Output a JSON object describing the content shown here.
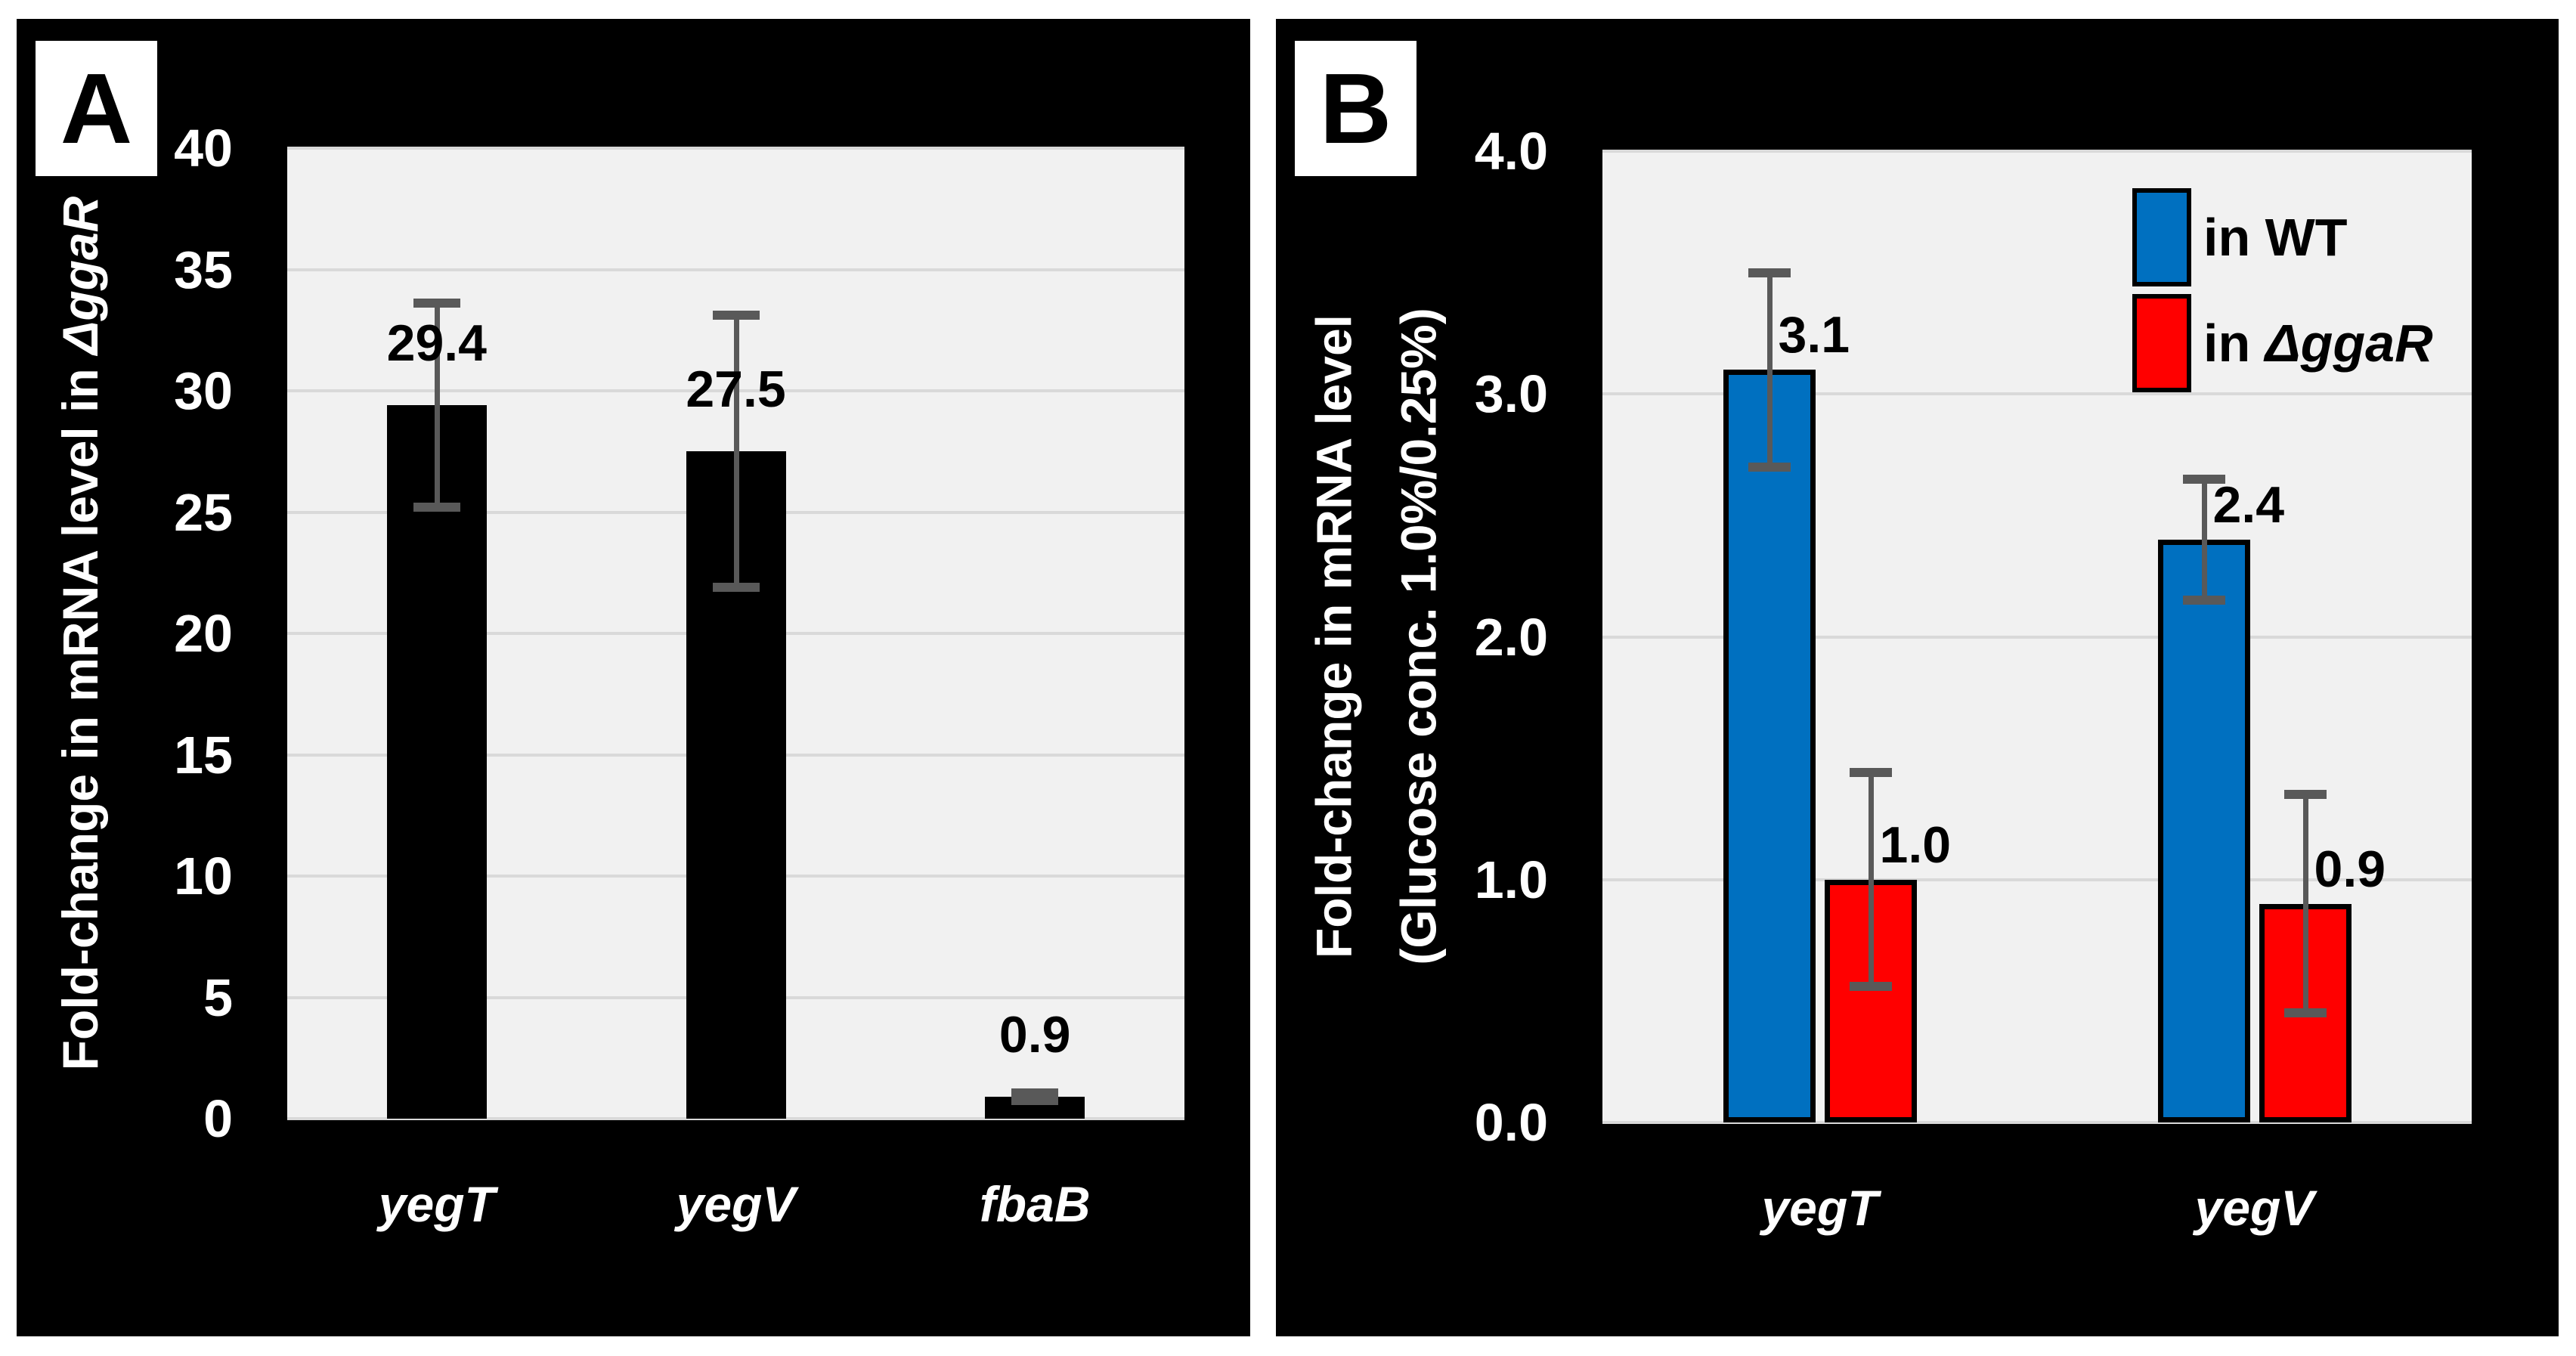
{
  "page": {
    "background": "#FFFFFF"
  },
  "colors": {
    "panel_bg": "#000000",
    "plot_bg": "#F1F1F1",
    "gridline": "#D9D9D9",
    "error_bar": "#595959",
    "bar_black": "#000000",
    "wt_blue": "#0070C0",
    "ggar_red": "#FF0000",
    "text_light": "#FFFFFF",
    "text_dark": "#000000"
  },
  "panels": [
    {
      "label": "A",
      "y_title_prefix": "Fold-change in mRNA level in ",
      "y_title_italic": "ΔggaR"
    },
    {
      "label": "B",
      "y_title_line1": "Fold-change in mRNA level",
      "y_title_line2": "(Glucose conc. 1.0%/0.25%)"
    }
  ],
  "chart_data": [
    {
      "panel": "A",
      "type": "bar",
      "title": "",
      "xlabel": "",
      "ylabel": "Fold-change in mRNA level in ΔggaR",
      "ylim": [
        0,
        40
      ],
      "ytick_step": 5,
      "grid": true,
      "yticks": [
        {
          "v": 0,
          "label": "0"
        },
        {
          "v": 5,
          "label": "5"
        },
        {
          "v": 10,
          "label": "10"
        },
        {
          "v": 15,
          "label": "15"
        },
        {
          "v": 20,
          "label": "20"
        },
        {
          "v": 25,
          "label": "25"
        },
        {
          "v": 30,
          "label": "30"
        },
        {
          "v": 35,
          "label": "35"
        },
        {
          "v": 40,
          "label": "40"
        }
      ],
      "categories": [
        "yegT",
        "yegV",
        "fbaB"
      ],
      "values": [
        29.4,
        27.5,
        0.9
      ],
      "value_labels": [
        "29.4",
        "27.5",
        "0.9"
      ],
      "errors": [
        4.2,
        5.6,
        0.15
      ],
      "bar_color": "#000000"
    },
    {
      "panel": "B",
      "type": "grouped-bar",
      "title": "",
      "xlabel": "",
      "ylabel_line1": "Fold-change in mRNA level",
      "ylabel_line2": "(Glucose conc. 1.0%/0.25%)",
      "ylim": [
        0,
        4
      ],
      "ytick_step": 1,
      "grid": true,
      "legend_position": "top-right",
      "yticks": [
        {
          "v": 0,
          "label": "0.0"
        },
        {
          "v": 1,
          "label": "1.0"
        },
        {
          "v": 2,
          "label": "2.0"
        },
        {
          "v": 3,
          "label": "3.0"
        },
        {
          "v": 4,
          "label": "4.0"
        }
      ],
      "categories": [
        "yegT",
        "yegV"
      ],
      "series": [
        {
          "name_prefix": "in ",
          "name_main": "WT",
          "name_main_italic": false,
          "color": "#0070C0",
          "values": [
            3.1,
            2.4
          ],
          "value_labels": [
            "3.1",
            "2.4"
          ],
          "errors": [
            0.4,
            0.25
          ]
        },
        {
          "name_prefix": "in ",
          "name_main": "ΔggaR",
          "name_main_italic": true,
          "color": "#FF0000",
          "values": [
            1.0,
            0.9
          ],
          "value_labels": [
            "1.0",
            "0.9"
          ],
          "errors": [
            0.44,
            0.45
          ]
        }
      ]
    }
  ]
}
